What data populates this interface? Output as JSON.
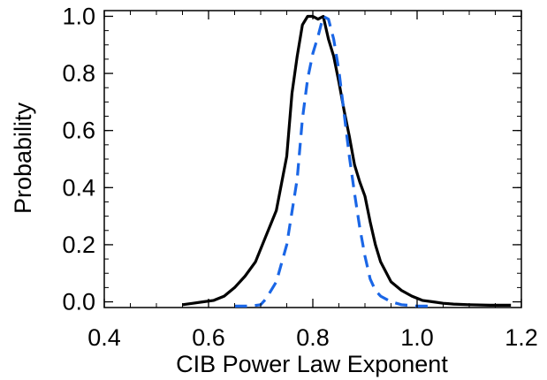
{
  "chart_data": {
    "type": "line",
    "xlabel": "CIB Power Law Exponent",
    "ylabel": "Probability",
    "xlim": [
      0.4,
      1.2
    ],
    "ylim": [
      -0.02,
      1.02
    ],
    "xticks": [
      {
        "value": 0.4,
        "label": "0.4"
      },
      {
        "value": 0.6,
        "label": "0.6"
      },
      {
        "value": 0.8,
        "label": "0.8"
      },
      {
        "value": 1.0,
        "label": "1.0"
      },
      {
        "value": 1.2,
        "label": "1.2"
      }
    ],
    "yticks": [
      {
        "value": 0.0,
        "label": "0.0"
      },
      {
        "value": 0.2,
        "label": "0.2"
      },
      {
        "value": 0.4,
        "label": "0.4"
      },
      {
        "value": 0.6,
        "label": "0.6"
      },
      {
        "value": 0.8,
        "label": "0.8"
      },
      {
        "value": 1.0,
        "label": "1.0"
      }
    ],
    "grid": false,
    "series": [
      {
        "color": "#000000",
        "style": "solid",
        "points": [
          [
            0.55,
            -0.01
          ],
          [
            0.57,
            -0.005
          ],
          [
            0.59,
            0.0
          ],
          [
            0.61,
            0.005
          ],
          [
            0.63,
            0.02
          ],
          [
            0.65,
            0.05
          ],
          [
            0.67,
            0.09
          ],
          [
            0.69,
            0.14
          ],
          [
            0.71,
            0.23
          ],
          [
            0.73,
            0.32
          ],
          [
            0.75,
            0.51
          ],
          [
            0.76,
            0.73
          ],
          [
            0.77,
            0.86
          ],
          [
            0.78,
            0.97
          ],
          [
            0.79,
            1.0
          ],
          [
            0.8,
            1.0
          ],
          [
            0.81,
            0.99
          ],
          [
            0.82,
            1.0
          ],
          [
            0.83,
            0.92
          ],
          [
            0.84,
            0.86
          ],
          [
            0.85,
            0.77
          ],
          [
            0.86,
            0.67
          ],
          [
            0.87,
            0.58
          ],
          [
            0.88,
            0.48
          ],
          [
            0.89,
            0.42
          ],
          [
            0.9,
            0.37
          ],
          [
            0.91,
            0.28
          ],
          [
            0.92,
            0.2
          ],
          [
            0.93,
            0.14
          ],
          [
            0.95,
            0.07
          ],
          [
            0.97,
            0.04
          ],
          [
            0.99,
            0.02
          ],
          [
            1.01,
            0.005
          ],
          [
            1.03,
            0.0
          ],
          [
            1.05,
            -0.005
          ],
          [
            1.07,
            -0.008
          ],
          [
            1.1,
            -0.01
          ],
          [
            1.14,
            -0.012
          ],
          [
            1.18,
            -0.012
          ]
        ]
      },
      {
        "color": "#1a66e6",
        "style": "dashed",
        "points": [
          [
            0.65,
            -0.015
          ],
          [
            0.68,
            -0.015
          ],
          [
            0.7,
            -0.01
          ],
          [
            0.71,
            0.01
          ],
          [
            0.73,
            0.07
          ],
          [
            0.75,
            0.2
          ],
          [
            0.77,
            0.43
          ],
          [
            0.78,
            0.64
          ],
          [
            0.79,
            0.78
          ],
          [
            0.8,
            0.87
          ],
          [
            0.81,
            0.93
          ],
          [
            0.82,
            1.0
          ],
          [
            0.83,
            0.99
          ],
          [
            0.84,
            0.92
          ],
          [
            0.85,
            0.81
          ],
          [
            0.86,
            0.66
          ],
          [
            0.87,
            0.51
          ],
          [
            0.88,
            0.38
          ],
          [
            0.89,
            0.26
          ],
          [
            0.9,
            0.16
          ],
          [
            0.91,
            0.08
          ],
          [
            0.92,
            0.04
          ],
          [
            0.93,
            0.02
          ],
          [
            0.95,
            0.0
          ],
          [
            0.97,
            -0.01
          ],
          [
            1.0,
            -0.015
          ],
          [
            1.03,
            -0.015
          ]
        ]
      }
    ]
  }
}
